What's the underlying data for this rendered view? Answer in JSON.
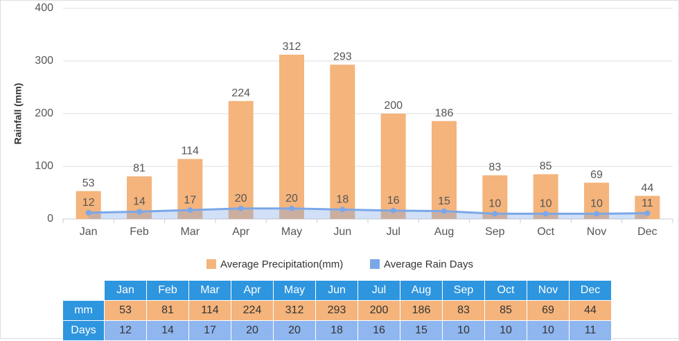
{
  "chart_data": {
    "type": "bar",
    "y_label": "Rainfall (mm)",
    "categories": [
      "Jan",
      "Feb",
      "Mar",
      "Apr",
      "May",
      "Jun",
      "Jul",
      "Aug",
      "Sep",
      "Oct",
      "Nov",
      "Dec"
    ],
    "series": [
      {
        "name": "Average Precipitation(mm)",
        "type": "bar",
        "color": "#f4b47c",
        "values": [
          53,
          81,
          114,
          224,
          312,
          293,
          200,
          186,
          83,
          85,
          69,
          44
        ]
      },
      {
        "name": "Average Rain Days",
        "type": "area-line",
        "color": "#7ba7e8",
        "values": [
          12,
          14,
          17,
          20,
          20,
          18,
          16,
          15,
          10,
          10,
          10,
          11
        ]
      }
    ],
    "ylim": [
      0,
      400
    ],
    "yticks": [
      0,
      100,
      200,
      300,
      400
    ],
    "grid": true
  },
  "table": {
    "row_labels": [
      "mm",
      "Days"
    ]
  }
}
